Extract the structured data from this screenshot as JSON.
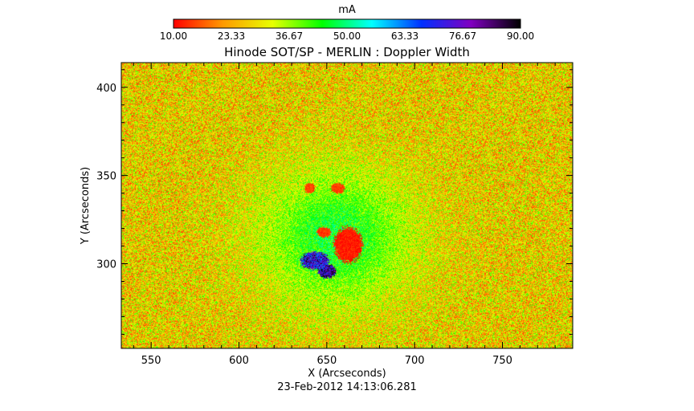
{
  "chart_data": {
    "type": "heatmap",
    "title": "Hinode SOT/SP - MERLIN : Doppler Width",
    "xlabel": "X (Arcseconds)",
    "ylabel": "Y (Arcseconds)",
    "timestamp": "23-Feb-2012 14:13:06.281",
    "xlim": [
      533,
      790
    ],
    "ylim": [
      252,
      414
    ],
    "x_ticks": [
      "550",
      "600",
      "650",
      "700",
      "750"
    ],
    "y_ticks": [
      "300",
      "350",
      "400"
    ],
    "colorbar": {
      "label": "mA",
      "range": [
        10,
        90
      ],
      "tick_labels": [
        "10.00",
        "23.33",
        "36.67",
        "50.00",
        "63.33",
        "76.67",
        "90.00"
      ],
      "colors": [
        "#ff0000",
        "#ff9a00",
        "#e8ff00",
        "#00ff00",
        "#00ffff",
        "#0030ff",
        "#8000c0",
        "#000000"
      ]
    },
    "field": {
      "background_mean": 28,
      "background_spread": 14,
      "features": [
        {
          "kind": "umbra",
          "x": 662,
          "y": 311,
          "rx": 8,
          "ry": 10,
          "value": 12
        },
        {
          "kind": "pore",
          "x": 648,
          "y": 318,
          "rx": 4,
          "ry": 3,
          "value": 14
        },
        {
          "kind": "pore",
          "x": 640,
          "y": 343,
          "rx": 3,
          "ry": 3,
          "value": 15
        },
        {
          "kind": "pore",
          "x": 656,
          "y": 343,
          "rx": 4,
          "ry": 3,
          "value": 15
        },
        {
          "kind": "penumbra-dark",
          "x": 643,
          "y": 302,
          "rx": 8,
          "ry": 5,
          "value": 75
        },
        {
          "kind": "penumbra-dark",
          "x": 650,
          "y": 296,
          "rx": 5,
          "ry": 4,
          "value": 80
        },
        {
          "kind": "plage",
          "x": 655,
          "y": 315,
          "rx": 45,
          "ry": 40,
          "value": 46
        }
      ]
    }
  }
}
